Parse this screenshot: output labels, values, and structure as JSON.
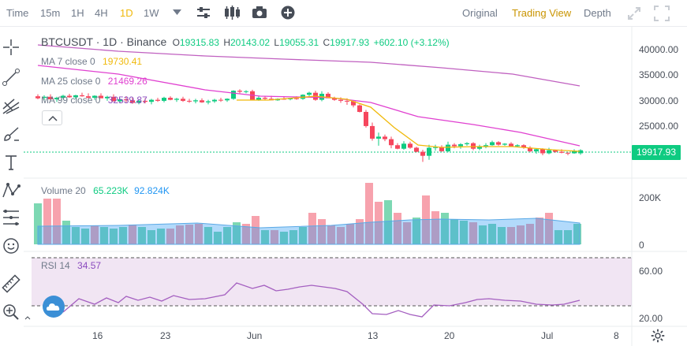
{
  "toolbar": {
    "time_label": "Time",
    "intervals": [
      "15m",
      "1H",
      "4H",
      "1D",
      "1W"
    ],
    "active_interval": "1D",
    "dropdown_icon": "chevron-down-icon",
    "views": [
      "Original",
      "Trading View",
      "Depth"
    ],
    "active_view": "Trading View",
    "icons": [
      "indicator-settings-icon",
      "candle-style-icon",
      "screenshot-icon",
      "add-icon",
      "expand-icon",
      "fullscreen-icon"
    ]
  },
  "left_tools": [
    "crosshair-icon",
    "trendline-icon",
    "pitchfork-icon",
    "brush-icon",
    "text-icon",
    "pattern-icon",
    "fibonacci-icon",
    "emoji-icon",
    "ruler-icon",
    "zoom-in-icon",
    "magnet-icon"
  ],
  "legend": {
    "symbol": "BTCUSDT · 1D · Binance",
    "open_lbl": "O",
    "open": "19315.83",
    "high_lbl": "H",
    "high": "20143.02",
    "low_lbl": "L",
    "low": "19055.31",
    "close_lbl": "C",
    "close": "19917.93",
    "change": "+602.10 (+3.12%)",
    "ma7_label": "MA 7 close 0",
    "ma7_value": "19730.41",
    "ma25_label": "MA 25 close 0",
    "ma25_value": "21469.26",
    "ma99_label": "MA 99 close 0",
    "ma99_value": "32539.87",
    "volume_label": "Volume 20",
    "volume_a": "65.223K",
    "volume_b": "92.824K",
    "rsi_label": "RSI 14",
    "rsi_value": "34.57"
  },
  "price_axis": {
    "ticks": [
      "40000.00",
      "35000.00",
      "30000.00",
      "25000.00"
    ],
    "last_price": "19917.93"
  },
  "volume_axis": {
    "ticks": [
      "200K",
      "0"
    ]
  },
  "rsi_axis": {
    "ticks": [
      "60.00",
      "20.00"
    ]
  },
  "time_axis": [
    "16",
    "23",
    "Jun",
    "13",
    "20",
    "Jul",
    "8"
  ],
  "colors": {
    "up": "#0ecb81",
    "down": "#f6465d",
    "ma7": "#f0b90b",
    "ma25": "#e040d0",
    "ma99": "#c060c0",
    "accent": "#f0b90b"
  }
}
